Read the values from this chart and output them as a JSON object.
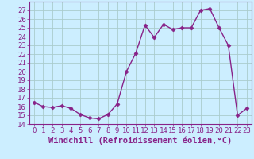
{
  "x": [
    0,
    1,
    2,
    3,
    4,
    5,
    6,
    7,
    8,
    9,
    10,
    11,
    12,
    13,
    14,
    15,
    16,
    17,
    18,
    19,
    20,
    21,
    22,
    23
  ],
  "y": [
    16.5,
    16.0,
    15.9,
    16.1,
    15.8,
    15.1,
    14.7,
    14.6,
    15.1,
    16.3,
    20.0,
    22.1,
    25.3,
    23.9,
    25.4,
    24.8,
    25.0,
    25.0,
    27.0,
    27.2,
    25.0,
    23.0,
    15.0,
    15.8
  ],
  "line_color": "#882288",
  "marker": "D",
  "marker_size": 2.5,
  "bg_color": "#cceeff",
  "grid_color": "#aacccc",
  "xlabel": "Windchill (Refroidissement éolien,°C)",
  "xlabel_fontsize": 7.5,
  "ylim": [
    14,
    28
  ],
  "xlim": [
    -0.5,
    23.5
  ],
  "yticks": [
    14,
    15,
    16,
    17,
    18,
    19,
    20,
    21,
    22,
    23,
    24,
    25,
    26,
    27
  ],
  "xticks": [
    0,
    1,
    2,
    3,
    4,
    5,
    6,
    7,
    8,
    9,
    10,
    11,
    12,
    13,
    14,
    15,
    16,
    17,
    18,
    19,
    20,
    21,
    22,
    23
  ],
  "tick_fontsize": 6.5,
  "line_width": 1.0
}
